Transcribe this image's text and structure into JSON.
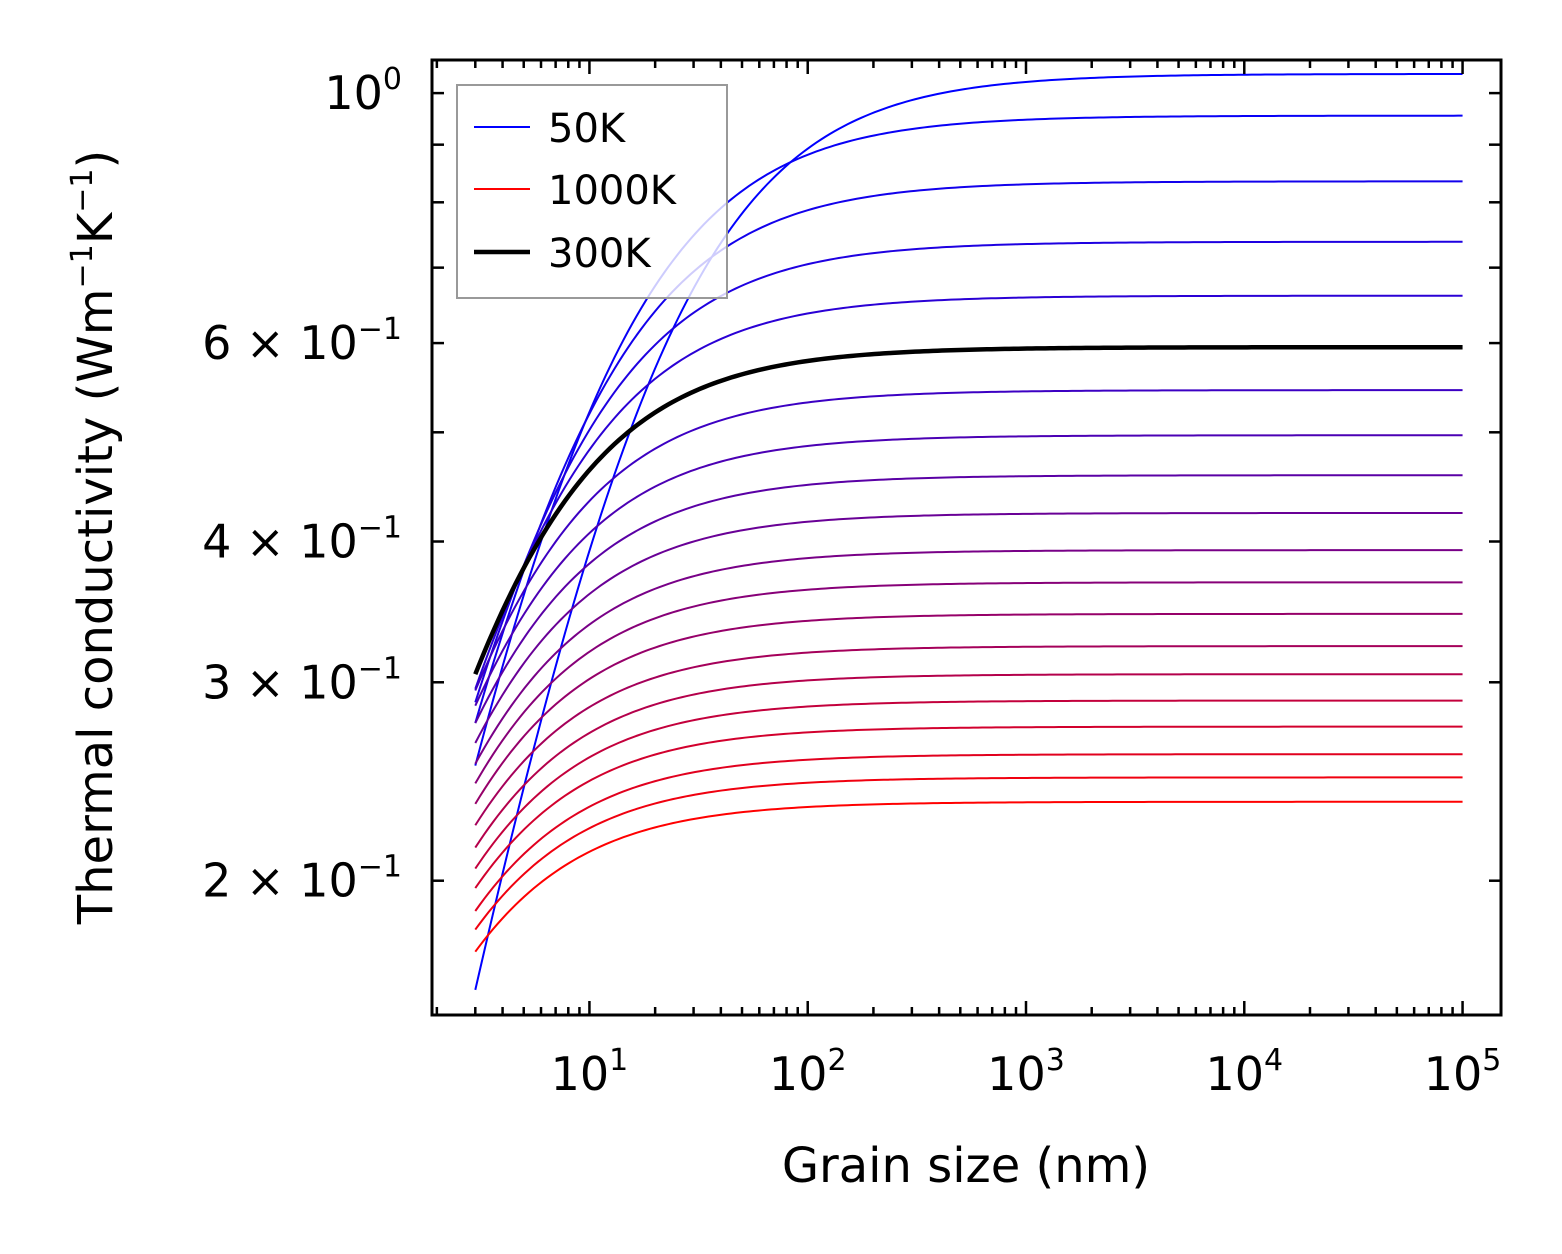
{
  "chart_data": {
    "type": "line",
    "xscale": "log",
    "yscale": "log",
    "xlabel": "Grain size (nm)",
    "ylabel_base": "Thermal conductivity (Wm",
    "ylabel_exp1": "−1",
    "ylabel_mid": "K",
    "ylabel_exp2": "−1",
    "ylabel_end": ")",
    "xlim": [
      1.9,
      150000
    ],
    "ylim": [
      0.152,
      1.07
    ],
    "x_ticks": [
      {
        "value": 10,
        "base": "10",
        "exp": "1"
      },
      {
        "value": 100,
        "base": "10",
        "exp": "2"
      },
      {
        "value": 1000,
        "base": "10",
        "exp": "3"
      },
      {
        "value": 10000,
        "base": "10",
        "exp": "4"
      },
      {
        "value": 100000,
        "base": "10",
        "exp": "5"
      }
    ],
    "y_ticks": [
      {
        "value": 1.0,
        "base": "10",
        "exp": "0"
      },
      {
        "value": 0.6,
        "base": "6 × 10",
        "exp": "−1"
      },
      {
        "value": 0.4,
        "base": "4 × 10",
        "exp": "−1"
      },
      {
        "value": 0.3,
        "base": "3 × 10",
        "exp": "−1"
      },
      {
        "value": 0.2,
        "base": "2 × 10",
        "exp": "−1"
      }
    ],
    "x_range": [
      3,
      100000
    ],
    "curves_label_note": "temperature sweep from 50K (blue) to 1000K (red)",
    "series": [
      {
        "name": "50K",
        "kinf": 1.04,
        "k3": 0.16,
        "color": "#0000ff",
        "legend": true
      },
      {
        "name": "",
        "kinf": 0.955,
        "k3": 0.253,
        "color": "#0800f6"
      },
      {
        "name": "",
        "kinf": 0.835,
        "k3": 0.276,
        "color": "#1200ec"
      },
      {
        "name": "",
        "kinf": 0.738,
        "k3": 0.288,
        "color": "#1e00e1"
      },
      {
        "name": "",
        "kinf": 0.661,
        "k3": 0.296,
        "color": "#2a00d5"
      },
      {
        "name": "",
        "kinf": 0.545,
        "k3": 0.295,
        "color": "#3c00c3"
      },
      {
        "name": "",
        "kinf": 0.497,
        "k3": 0.286,
        "color": "#4b00b4"
      },
      {
        "name": "",
        "kinf": 0.458,
        "k3": 0.276,
        "color": "#5a00a5"
      },
      {
        "name": "",
        "kinf": 0.424,
        "k3": 0.265,
        "color": "#690096"
      },
      {
        "name": "",
        "kinf": 0.393,
        "k3": 0.254,
        "color": "#780087"
      },
      {
        "name": "",
        "kinf": 0.368,
        "k3": 0.244,
        "color": "#870078"
      },
      {
        "name": "",
        "kinf": 0.345,
        "k3": 0.234,
        "color": "#960069"
      },
      {
        "name": "",
        "kinf": 0.323,
        "k3": 0.224,
        "color": "#a5005a"
      },
      {
        "name": "",
        "kinf": 0.305,
        "k3": 0.214,
        "color": "#b4004b"
      },
      {
        "name": "",
        "kinf": 0.289,
        "k3": 0.205,
        "color": "#c3003c"
      },
      {
        "name": "",
        "kinf": 0.274,
        "k3": 0.197,
        "color": "#d2002d"
      },
      {
        "name": "",
        "kinf": 0.259,
        "k3": 0.188,
        "color": "#e1001e"
      },
      {
        "name": "",
        "kinf": 0.247,
        "k3": 0.181,
        "color": "#f0000f"
      },
      {
        "name": "1000K",
        "kinf": 0.235,
        "k3": 0.173,
        "color": "#ff0000",
        "legend": true
      },
      {
        "name": "300K",
        "kinf": 0.595,
        "k3": 0.305,
        "color": "#000000",
        "bold": true,
        "legend": true
      }
    ],
    "legend": {
      "position": "top-left",
      "entries": [
        "50K",
        "1000K",
        "300K"
      ]
    }
  }
}
